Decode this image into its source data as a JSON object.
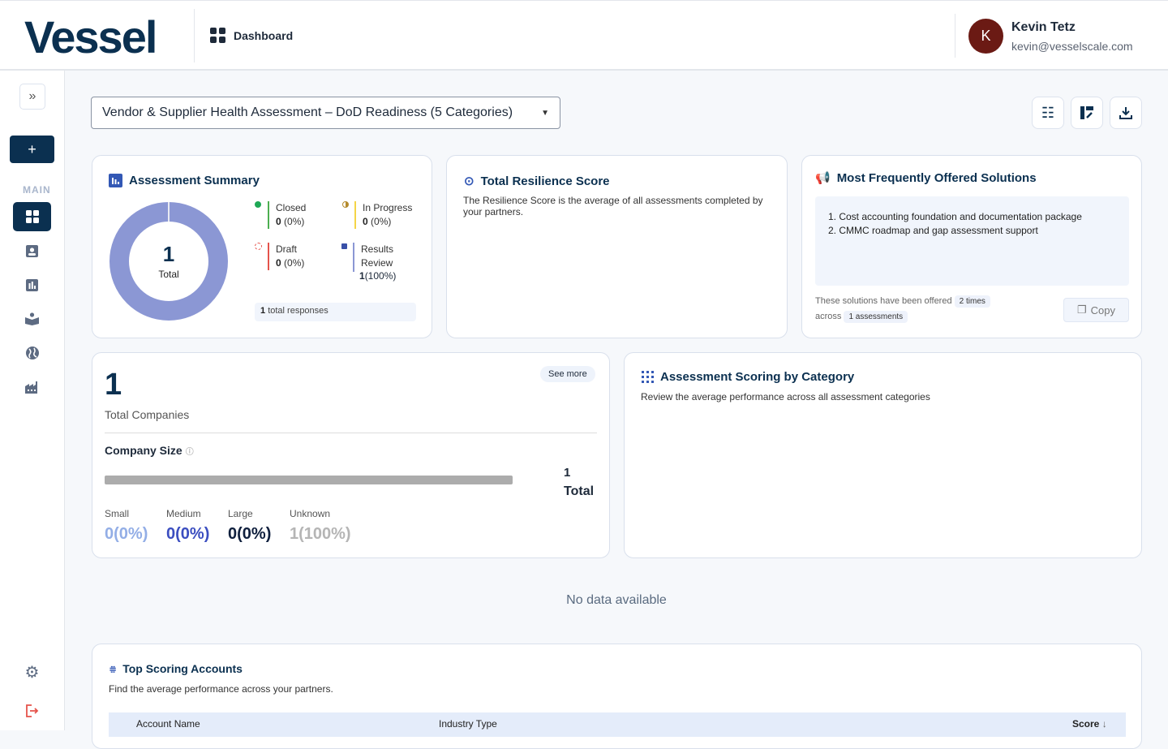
{
  "header": {
    "logo": "Vessel",
    "nav_label": "Dashboard",
    "user": {
      "initial": "K",
      "name": "Kevin Tetz",
      "email": "kevin@vesselscale.com",
      "avatar_color": "#6b1a14"
    }
  },
  "sidebar": {
    "section": "MAIN",
    "items": [
      "dashboard-icon",
      "contacts-icon",
      "reports-icon",
      "learning-icon",
      "globe-icon",
      "factory-icon"
    ],
    "bottom": [
      "gear-icon",
      "logout-icon"
    ],
    "accent": "#0b3050"
  },
  "toolbar": {
    "assessment_select": "Vendor & Supplier Health Assessment – DoD Readiness (5 Categories)"
  },
  "summary": {
    "title": "Assessment Summary",
    "total": "1",
    "total_label": "Total",
    "legend": [
      {
        "label": "Closed",
        "count": "0",
        "pct": "(0%)",
        "color": "#4caf50"
      },
      {
        "label": "In Progress",
        "count": "0",
        "pct": "(0%)",
        "color": "#f5d547"
      },
      {
        "label": "Draft",
        "count": "0",
        "pct": "(0%)",
        "color": "#e5534b"
      },
      {
        "label": "Results Review",
        "count": "1",
        "pct": "(100%)",
        "color": "#8b97d4"
      }
    ],
    "responses_count": "1",
    "responses_label": "total responses"
  },
  "resilience": {
    "title": "Total Resilience Score",
    "desc": "The Resilience Score is the average of all assessments completed by your partners."
  },
  "solutions": {
    "title": "Most Frequently Offered Solutions",
    "items": [
      "1. Cost accounting foundation and documentation package",
      "2. CMMC roadmap and gap assessment support"
    ],
    "offered_text": "These solutions have been offered",
    "times": "2 times",
    "across": "across",
    "assessments": "1 assessments",
    "copy": "Copy"
  },
  "companies": {
    "count": "1",
    "label": "Total Companies",
    "see_more": "See more",
    "size_title": "Company Size",
    "total_count": "1",
    "total_label": "Total",
    "sizes": [
      {
        "label": "Small",
        "value": "0(0%)",
        "color": "#93aee6"
      },
      {
        "label": "Medium",
        "value": "0(0%)",
        "color": "#3b4ec0"
      },
      {
        "label": "Large",
        "value": "0(0%)",
        "color": "#0f1f3d"
      },
      {
        "label": "Unknown",
        "value": "1(100%)",
        "color": "#b5b5b5"
      }
    ]
  },
  "scoring": {
    "title": "Assessment Scoring by Category",
    "desc": "Review the average performance across all assessment categories",
    "empty": "No data available"
  },
  "top_accounts": {
    "title": "Top Scoring Accounts",
    "desc": "Find the average performance across your partners.",
    "columns": [
      "Account Name",
      "Industry Type",
      "Score"
    ]
  }
}
